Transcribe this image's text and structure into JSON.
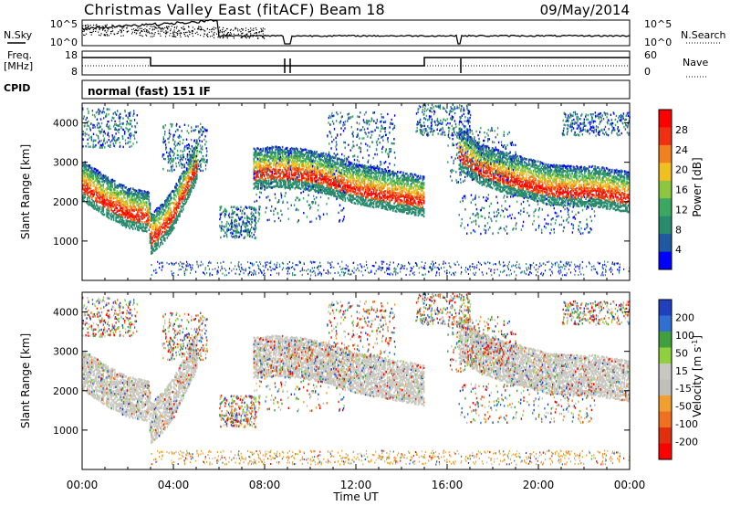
{
  "header": {
    "title": "Christmas Valley East (fitACF)",
    "beam": "Beam 18",
    "date": "09/May/2014"
  },
  "summary_panels": {
    "nsky_label": "N.Sky",
    "nsky_ticks": [
      "10^5",
      "10^0"
    ],
    "nsearch_label": "N.Search",
    "nsearch_ticks": [
      "10^5",
      "10^0"
    ],
    "freq_label": "Freq.",
    "freq_unit": "[MHz]",
    "freq_ticks": [
      "18",
      "8"
    ],
    "nave_label": "Nave",
    "nave_ticks": [
      "60",
      "0"
    ],
    "cpid_label": "CPID",
    "cpid_value": "normal (fast) 151 IF"
  },
  "colors": {
    "power_scale": [
      "#0000ff",
      "#1f5aa0",
      "#2a8a6e",
      "#3aa860",
      "#8cc63f",
      "#f0c020",
      "#f08020",
      "#f03010",
      "#ff0000"
    ],
    "velocity_scale": [
      "#2040c0",
      "#3070d0",
      "#40a040",
      "#90d040",
      "#c8c8c0",
      "#c0c0b8",
      "#f0a030",
      "#f07020",
      "#e03010",
      "#ff0000"
    ],
    "ground_scatter": "#c8c8c0"
  },
  "chart_data": [
    {
      "type": "heatmap",
      "panel": "power",
      "ylabel": "Slant Range [km]",
      "xlabel": "",
      "ylim": [
        0,
        4500
      ],
      "xlim": [
        "00:00",
        "24:00"
      ],
      "y_ticks": [
        "1000",
        "2000",
        "3000",
        "4000"
      ],
      "colorbar_label": "Power [dB]",
      "colorbar_ticks": [
        "4",
        "8",
        "12",
        "16",
        "20",
        "24",
        "28"
      ],
      "echo_bands": [
        {
          "t": [
            0.0,
            1.0,
            2.0,
            2.9,
            3.0,
            3.5,
            4.0,
            4.5,
            5.0
          ],
          "range": [
            2400,
            2000,
            1700,
            1600,
            1050,
            1300,
            1700,
            2300,
            2900
          ]
        },
        {
          "t": [
            7.5,
            8.5,
            9.5,
            10.5,
            11.5,
            12.5,
            13.5,
            14.5,
            15.0
          ],
          "range": [
            2700,
            2750,
            2700,
            2600,
            2400,
            2250,
            2150,
            2050,
            2000
          ]
        },
        {
          "t": [
            16.5,
            17.5,
            18.5,
            19.5,
            20.5,
            21.5,
            22.5,
            23.5,
            24.0
          ],
          "range": [
            3200,
            2800,
            2600,
            2450,
            2300,
            2250,
            2250,
            2150,
            2100
          ]
        }
      ]
    },
    {
      "type": "heatmap",
      "panel": "velocity",
      "ylabel": "Slant Range [km]",
      "xlabel": "Time UT",
      "ylim": [
        0,
        4500
      ],
      "xlim": [
        "00:00",
        "24:00"
      ],
      "x_ticks": [
        "00:00",
        "04:00",
        "08:00",
        "12:00",
        "16:00",
        "20:00",
        "00:00"
      ],
      "y_ticks": [
        "1000",
        "2000",
        "3000",
        "4000"
      ],
      "colorbar_label": "Velocity [m s^-1]",
      "colorbar_ticks": [
        "200",
        "100",
        "50",
        "15",
        "-15",
        "-50",
        "-100",
        "-200"
      ]
    }
  ]
}
